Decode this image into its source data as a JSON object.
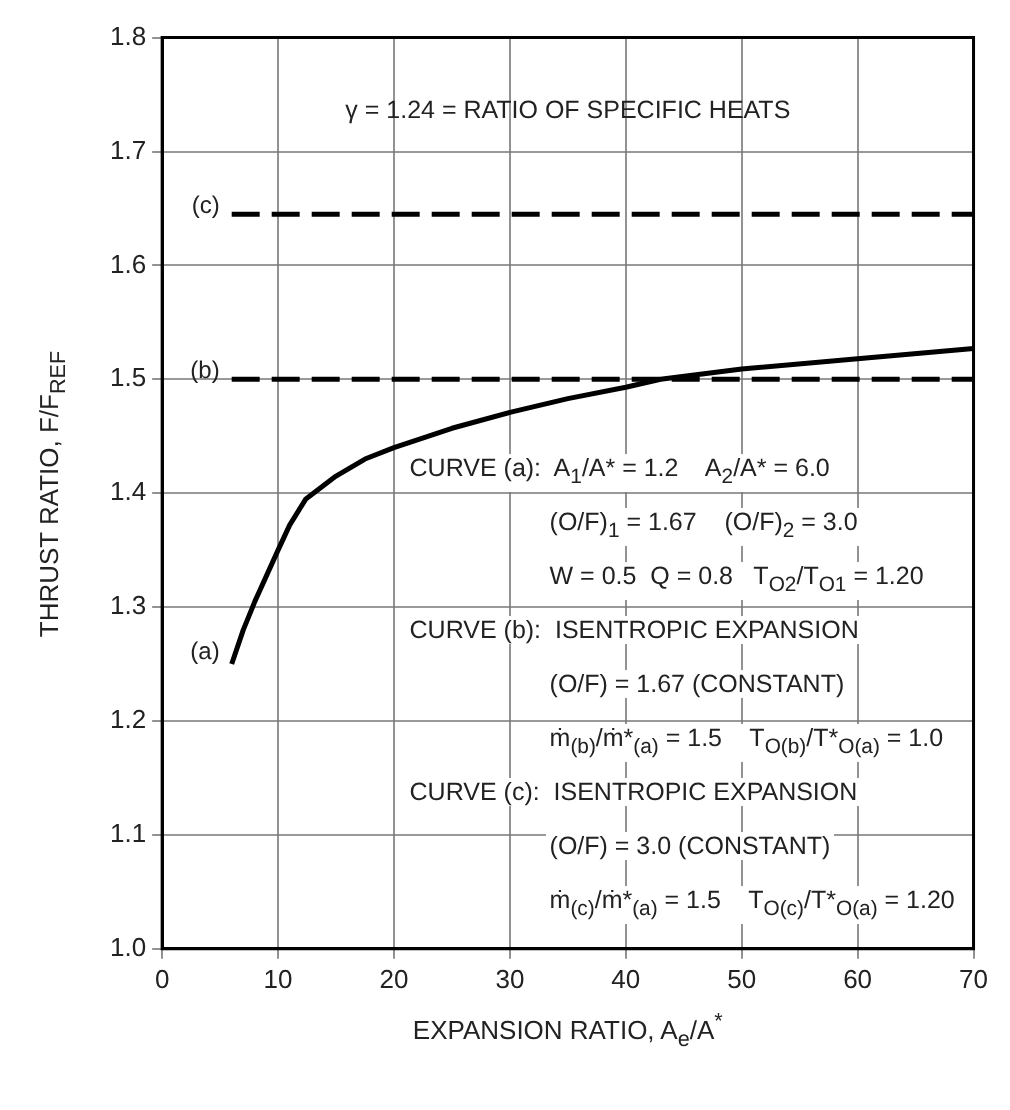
{
  "chart_data": {
    "type": "line",
    "xlabel": "EXPANSION RATIO, A$_{e}$/A$^{*}$",
    "ylabel": "THRUST RATIO, F/F$_{REF}$",
    "xlim": [
      0,
      70
    ],
    "xticks": [
      0,
      10,
      20,
      30,
      40,
      50,
      60,
      70
    ],
    "ylim": [
      1.0,
      1.8
    ],
    "yticks": [
      {
        "value": 1.0,
        "label": "1.0"
      },
      1.1,
      1.2,
      1.3,
      1.4,
      1.5,
      1.6,
      1.7,
      1.8
    ],
    "grid": true,
    "legend": false,
    "marker": "none",
    "series": [
      {
        "name": "(a)",
        "color": "#000000",
        "line_style": "solid",
        "x": [
          6,
          7,
          8,
          10,
          11,
          12.4,
          15,
          17.5,
          20,
          25,
          30,
          35,
          40,
          43,
          50,
          60,
          70
        ],
        "values": [
          1.25,
          1.28,
          1.305,
          1.35,
          1.372,
          1.395,
          1.415,
          1.43,
          1.44,
          1.457,
          1.471,
          1.483,
          1.493,
          1.5,
          1.509,
          1.518,
          1.527
        ]
      },
      {
        "name": "(b)",
        "color": "#000000",
        "line_style": "dashed",
        "x": [
          6,
          70
        ],
        "values": [
          1.5,
          1.5
        ]
      },
      {
        "name": "(c)",
        "color": "#000000",
        "line_style": "dashed",
        "x": [
          6,
          70
        ],
        "values": [
          1.645,
          1.645
        ]
      }
    ],
    "annotations": [
      "γ = 1.24 = RATIO OF SPECIFIC HEATS",
      "CURVE (a):  A$_{1}$/A* = 1.2    A$_{2}$/A* = 6.0",
      "(O/F)$_{1}$ = 1.67    (O/F)$_{2}$ = 3.0",
      "W = 0.5  Q = 0.8   T$_{O2}$/T$_{O1}$ = 1.20",
      "CURVE (b):  ISENTROPIC EXPANSION",
      "(O/F) = 1.67 (CONSTANT)",
      "ṁ$_{(b)}$/ṁ*$_{(a)}$ = 1.5    T$_{O(b)}$/T*$_{O(a)}$ = 1.0",
      "CURVE (c):  ISENTROPIC EXPANSION",
      "(O/F) = 3.0 (CONSTANT)",
      "ṁ$_{(c)}$/ṁ*$_{(a)}$ = 1.5    T$_{O(c)}$/T*$_{O(a)}$ = 1.20"
    ]
  }
}
